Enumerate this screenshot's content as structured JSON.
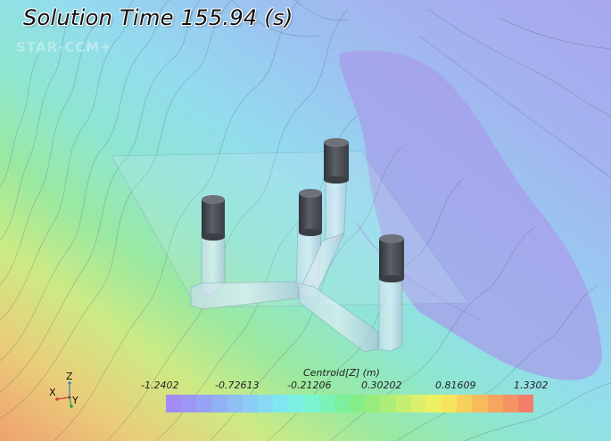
{
  "window": {
    "title": "Solution Time 155.94 (s)"
  },
  "watermark": "STAR-CCM+",
  "legend": {
    "title": "Centroid[Z] (m)",
    "ticks": [
      "-1.2402",
      "-0.72613",
      "-0.21206",
      "0.30202",
      "0.81609",
      "1.3302"
    ],
    "colors": [
      "#a38cf5",
      "#9c97f5",
      "#97a3f6",
      "#92b0f6",
      "#90bff6",
      "#8ccdf5",
      "#86dbf3",
      "#80e7f0",
      "#7cf1e3",
      "#7af5d0",
      "#7af3b8",
      "#7cf09e",
      "#85ed88",
      "#97ec7c",
      "#aeed77",
      "#c6ef72",
      "#dcf06c",
      "#eef064",
      "#f7e45e",
      "#f8d05c",
      "#f7bb5c",
      "#f6a65e",
      "#f49364",
      "#f27e6a"
    ]
  },
  "axes": {
    "x": "X",
    "y": "Y",
    "z": "Z"
  },
  "scene": {
    "colors": {
      "background_low": "#f2a36f",
      "background_mid": "#8fe7e6",
      "background_high": "#a3a1ef",
      "pipe": "#a9ccdf",
      "cap": "#4a4e57"
    }
  }
}
